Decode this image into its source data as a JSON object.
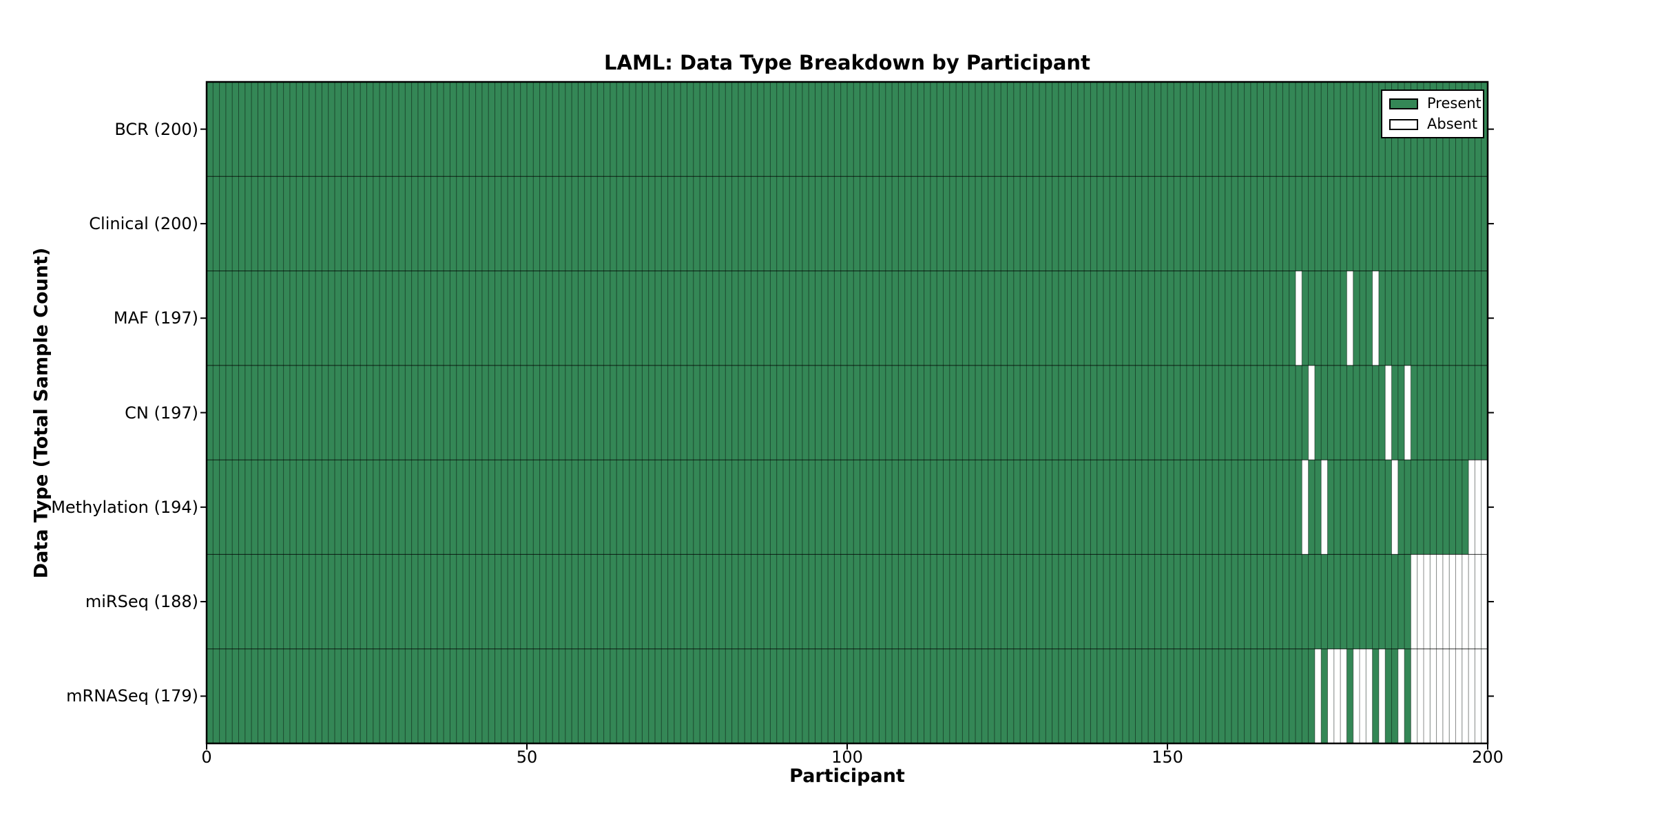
{
  "chart_data": {
    "type": "heatmap",
    "title": "LAML: Data Type Breakdown by Participant",
    "xlabel": "Participant",
    "ylabel": "Data Type (Total Sample Count)",
    "x_range": [
      0,
      200
    ],
    "x_ticks": [
      0,
      50,
      100,
      150,
      200
    ],
    "n_participants": 200,
    "grid": "per-cell vertical borders, horizontal row separators",
    "legend_position": "top-right",
    "legend": [
      {
        "label": "Present",
        "color": "#348756"
      },
      {
        "label": "Absent",
        "color": "#ffffff"
      }
    ],
    "colors": {
      "present": "#348756",
      "absent": "#ffffff",
      "cell_border": "rgba(0,0,0,0.45)",
      "row_separator": "rgba(0,0,0,0.8)",
      "axis_border": "#000000"
    },
    "rows": [
      {
        "label": "BCR (200)",
        "total": 200,
        "absent_participants": []
      },
      {
        "label": "Clinical (200)",
        "total": 200,
        "absent_participants": []
      },
      {
        "label": "MAF (197)",
        "total": 197,
        "absent_participants": [
          170,
          178,
          182
        ]
      },
      {
        "label": "CN (197)",
        "total": 197,
        "absent_participants": [
          172,
          184,
          187
        ]
      },
      {
        "label": "Methylation (194)",
        "total": 194,
        "absent_participants": [
          171,
          174,
          185,
          197,
          198,
          199
        ]
      },
      {
        "label": "miRSeq (188)",
        "total": 188,
        "absent_participants": [
          188,
          189,
          190,
          191,
          192,
          193,
          194,
          195,
          196,
          197,
          198,
          199
        ]
      },
      {
        "label": "mRNASeq (179)",
        "total": 179,
        "absent_participants": [
          173,
          175,
          176,
          177,
          179,
          180,
          181,
          183,
          186,
          188,
          189,
          190,
          191,
          192,
          193,
          194,
          195,
          196,
          197,
          198,
          199
        ]
      }
    ]
  }
}
